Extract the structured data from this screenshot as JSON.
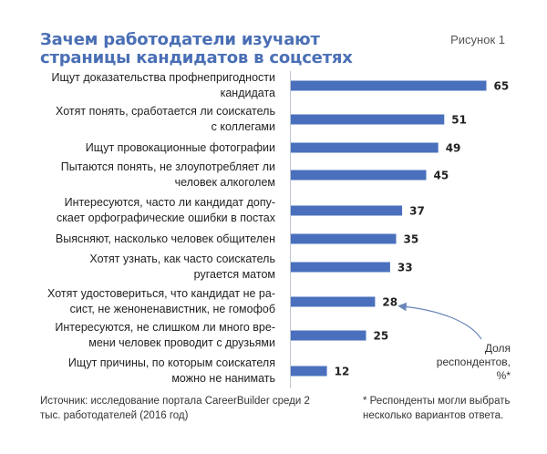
{
  "title": "Зачем работодатели изучают страницы кандидатов в соцсетях",
  "figure_label": "Рисунок 1",
  "source": "Источник: исследование портала CareerBuilder среди 2 тыс. работодателей (2016 год)",
  "footnote": "* Респонденты могли выбрать несколько вариантов ответа.",
  "respondents_label": "Доля респондентов, %*",
  "accent_color": "#4a70bd",
  "chart_data": {
    "type": "bar",
    "orientation": "horizontal",
    "title": "Зачем работодатели изучают страницы кандидатов в соцсетях",
    "xlabel": "Доля респондентов, %*",
    "ylabel": "",
    "xlim": [
      0,
      70
    ],
    "categories": [
      "Ищут доказательства профнепригодности кандидата",
      "Хотят понять, сработается ли соискатель с коллегами",
      "Ищут провокационные фотографии",
      "Пытаются понять, не злоупотребляет ли человек алкоголем",
      "Интересуются, часто ли кандидат допускает орфографические ошибки в постах",
      "Выясняют, насколько человек общителен",
      "Хотят узнать, как часто соискатель ругается матом",
      "Хотят удостовериться, что кандидат не расист, не женоненавистник, не гомофоб",
      "Интересуются, не слишком ли много времени человек проводит с друзьями",
      "Ищут причины, по которым соискателя можно не нанимать"
    ],
    "label_lines": [
      [
        "Ищут доказательства профнепригодности",
        "кандидата"
      ],
      [
        "Хотят понять, сработается ли соискатель",
        "с коллегами"
      ],
      [
        "Ищут провокационные фотографии"
      ],
      [
        "Пытаются понять, не злоупотребляет ли",
        "человек алкоголем"
      ],
      [
        "Интересуются, часто ли кандидат допу-",
        "скает орфографические ошибки в постах"
      ],
      [
        "Выясняют, насколько человек общителен"
      ],
      [
        "Хотят узнать, как часто соискатель",
        "ругается матом"
      ],
      [
        "Хотят удостовериться, что кандидат не ра-",
        "сист, не женоненавистник, не гомофоб"
      ],
      [
        "Интересуются, не слишком ли много вре-",
        "мени человек проводит с друзьями"
      ],
      [
        "Ищут причины, по которым соискателя",
        "можно не нанимать"
      ]
    ],
    "values": [
      65,
      51,
      49,
      45,
      37,
      35,
      33,
      28,
      25,
      12
    ]
  }
}
